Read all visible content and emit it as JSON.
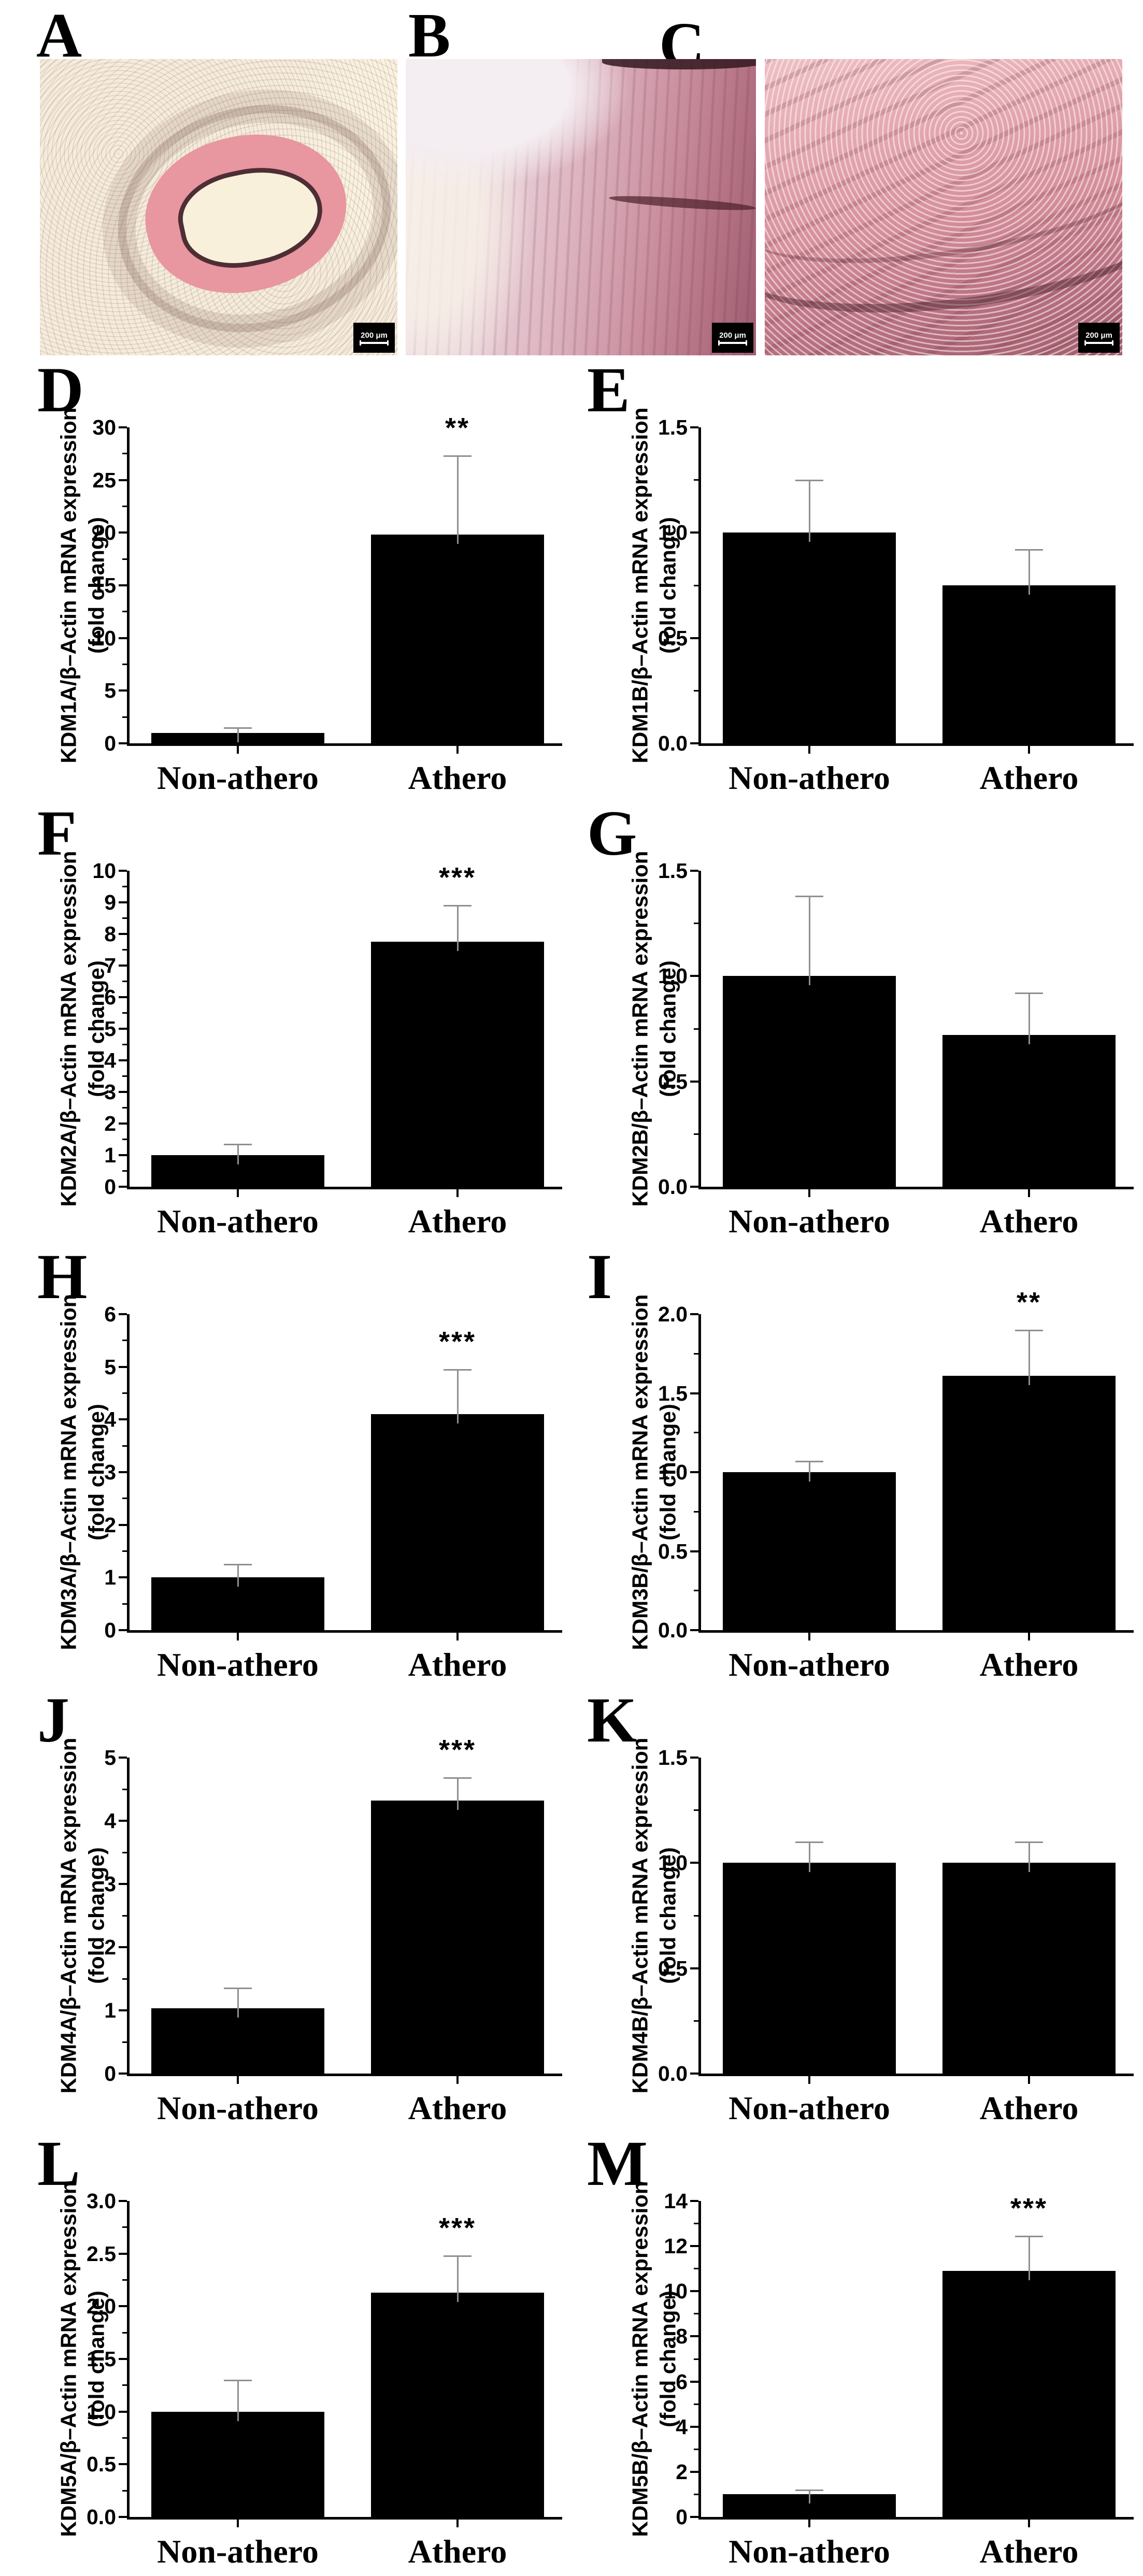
{
  "histology": {
    "panels": [
      {
        "letter": "A",
        "scale_bar": "200 μm"
      },
      {
        "letter": "B",
        "scale_bar": "200 μm"
      },
      {
        "letter": "C",
        "scale_bar": "200 μm"
      }
    ]
  },
  "colors": {
    "bar_fill": "#000000",
    "error_bar": "#8f8f8f",
    "background": "#ffffff",
    "stain_pink": "#e896a0"
  },
  "chart_data": [
    {
      "type": "bar",
      "panel": "D",
      "ylabel_line1": "KDM1A/β–Actin mRNA expression",
      "ylabel_line2": "(fold change)",
      "categories": [
        "Non-athero",
        "Athero"
      ],
      "values": [
        1.0,
        19.8
      ],
      "errors": [
        0.5,
        7.5
      ],
      "significance": [
        "",
        "**"
      ],
      "ylim": [
        0,
        30
      ],
      "yticks": [
        "0",
        "5",
        "10",
        "15",
        "20",
        "25",
        "30"
      ]
    },
    {
      "type": "bar",
      "panel": "E",
      "ylabel_line1": "KDM1B/β–Actin mRNA expression",
      "ylabel_line2": "(fold change)",
      "categories": [
        "Non-athero",
        "Athero"
      ],
      "values": [
        1.0,
        0.75
      ],
      "errors": [
        0.25,
        0.17
      ],
      "significance": [
        "",
        ""
      ],
      "ylim": [
        0,
        1.5
      ],
      "yticks": [
        "0.0",
        "0.5",
        "1.0",
        "1.5"
      ]
    },
    {
      "type": "bar",
      "panel": "F",
      "ylabel_line1": "KDM2A/β–Actin mRNA expression",
      "ylabel_line2": "(fold change)",
      "categories": [
        "Non-athero",
        "Athero"
      ],
      "values": [
        1.0,
        7.75
      ],
      "errors": [
        0.35,
        1.15
      ],
      "significance": [
        "",
        "***"
      ],
      "ylim": [
        0,
        10
      ],
      "yticks": [
        "0",
        "1",
        "2",
        "3",
        "4",
        "5",
        "6",
        "7",
        "8",
        "9",
        "10"
      ]
    },
    {
      "type": "bar",
      "panel": "G",
      "ylabel_line1": "KDM2B/β–Actin mRNA expression",
      "ylabel_line2": "(fold change)",
      "categories": [
        "Non-athero",
        "Athero"
      ],
      "values": [
        1.0,
        0.72
      ],
      "errors": [
        0.38,
        0.2
      ],
      "significance": [
        "",
        ""
      ],
      "ylim": [
        0,
        1.5
      ],
      "yticks": [
        "0.0",
        "0.5",
        "1.0",
        "1.5"
      ]
    },
    {
      "type": "bar",
      "panel": "H",
      "ylabel_line1": "KDM3A/β–Actin mRNA expression",
      "ylabel_line2": "(fold change)",
      "categories": [
        "Non-athero",
        "Athero"
      ],
      "values": [
        1.0,
        4.1
      ],
      "errors": [
        0.25,
        0.85
      ],
      "significance": [
        "",
        "***"
      ],
      "ylim": [
        0,
        6
      ],
      "yticks": [
        "0",
        "1",
        "2",
        "3",
        "4",
        "5",
        "6"
      ]
    },
    {
      "type": "bar",
      "panel": "I",
      "ylabel_line1": "KDM3B/β–Actin mRNA expression",
      "ylabel_line2": "(fold change)",
      "categories": [
        "Non-athero",
        "Athero"
      ],
      "values": [
        1.0,
        1.61
      ],
      "errors": [
        0.07,
        0.29
      ],
      "significance": [
        "",
        "**"
      ],
      "ylim": [
        0,
        2.0
      ],
      "yticks": [
        "0.0",
        "0.5",
        "1.0",
        "1.5",
        "2.0"
      ]
    },
    {
      "type": "bar",
      "panel": "J",
      "ylabel_line1": "KDM4A/β–Actin mRNA expression",
      "ylabel_line2": "(fold change)",
      "categories": [
        "Non-athero",
        "Athero"
      ],
      "values": [
        1.03,
        4.32
      ],
      "errors": [
        0.32,
        0.36
      ],
      "significance": [
        "",
        "***"
      ],
      "ylim": [
        0,
        5
      ],
      "yticks": [
        "0",
        "1",
        "2",
        "3",
        "4",
        "5"
      ]
    },
    {
      "type": "bar",
      "panel": "K",
      "ylabel_line1": "KDM4B/β–Actin mRNA expression",
      "ylabel_line2": "(fold change)",
      "categories": [
        "Non-athero",
        "Athero"
      ],
      "values": [
        1.0,
        1.0
      ],
      "errors": [
        0.1,
        0.1
      ],
      "significance": [
        "",
        ""
      ],
      "ylim": [
        0,
        1.5
      ],
      "yticks": [
        "0.0",
        "0.5",
        "1.0",
        "1.5"
      ]
    },
    {
      "type": "bar",
      "panel": "L",
      "ylabel_line1": "KDM5A/β–Actin mRNA expression",
      "ylabel_line2": "(fold change)",
      "categories": [
        "Non-athero",
        "Athero"
      ],
      "values": [
        1.0,
        2.13
      ],
      "errors": [
        0.3,
        0.35
      ],
      "significance": [
        "",
        "***"
      ],
      "ylim": [
        0,
        3.0
      ],
      "yticks": [
        "0.0",
        "0.5",
        "1.0",
        "1.5",
        "2.0",
        "2.5",
        "3.0"
      ]
    },
    {
      "type": "bar",
      "panel": "M",
      "ylabel_line1": "KDM5B/β–Actin mRNA expression",
      "ylabel_line2": "(fold change)",
      "categories": [
        "Non-athero",
        "Athero"
      ],
      "values": [
        1.0,
        10.9
      ],
      "errors": [
        0.2,
        1.55
      ],
      "significance": [
        "",
        "***"
      ],
      "ylim": [
        0,
        14
      ],
      "yticks": [
        "0",
        "2",
        "4",
        "6",
        "8",
        "10",
        "12",
        "14"
      ]
    }
  ]
}
